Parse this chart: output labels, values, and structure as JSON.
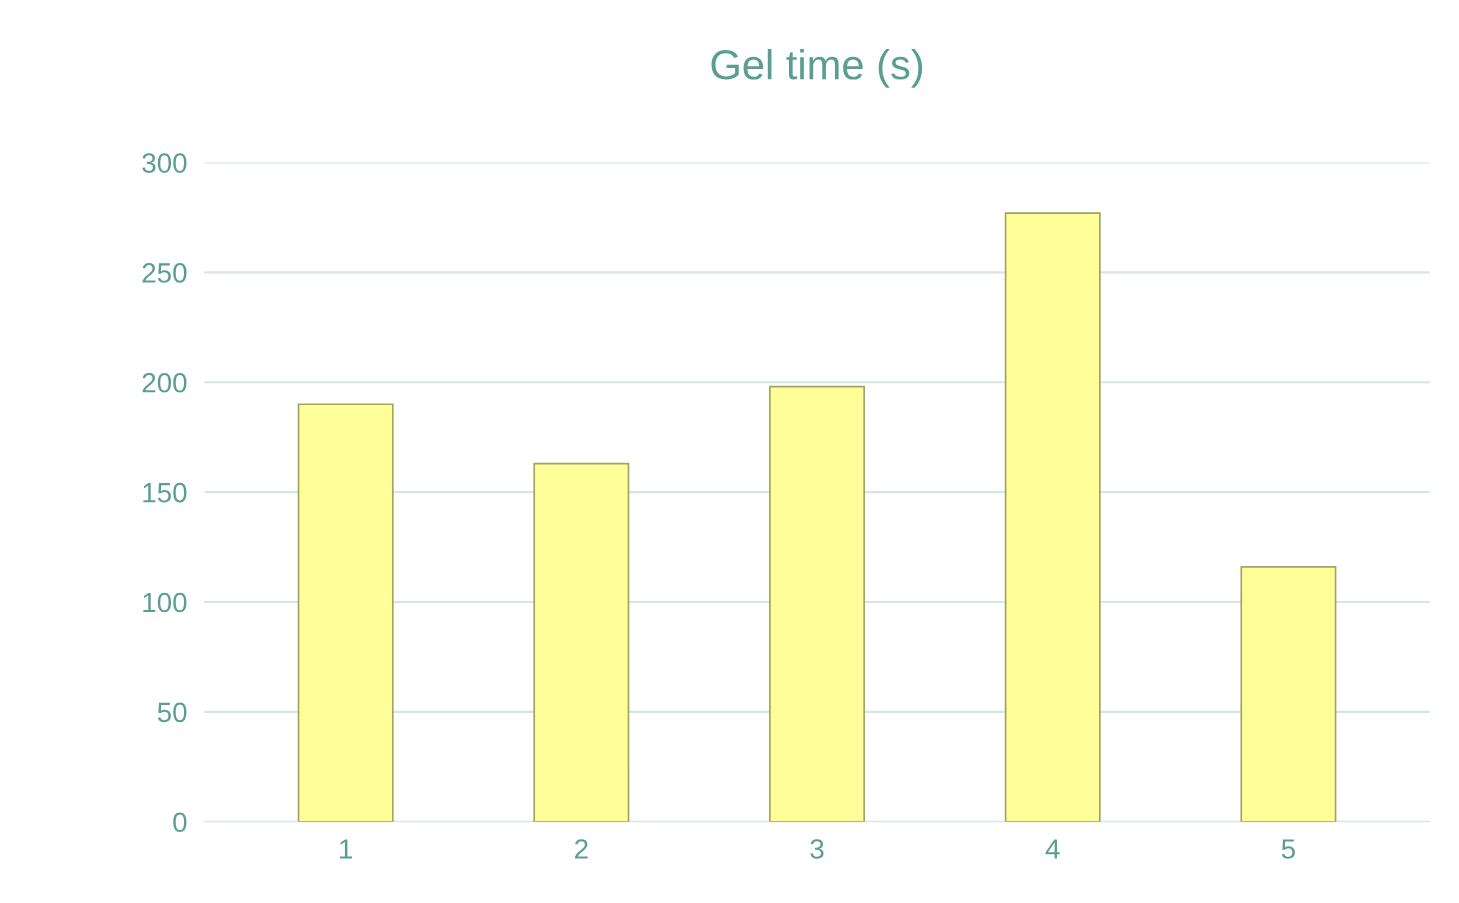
{
  "chart_data": {
    "type": "bar",
    "title": "Gel time (s)",
    "categories": [
      "1",
      "2",
      "3",
      "4",
      "5"
    ],
    "values": [
      190,
      163,
      198,
      277,
      116
    ],
    "color": "#ffff99",
    "ylim": [
      0,
      300
    ],
    "yticks": [
      0,
      50,
      100,
      150,
      200,
      250,
      300
    ],
    "grid": "y"
  }
}
